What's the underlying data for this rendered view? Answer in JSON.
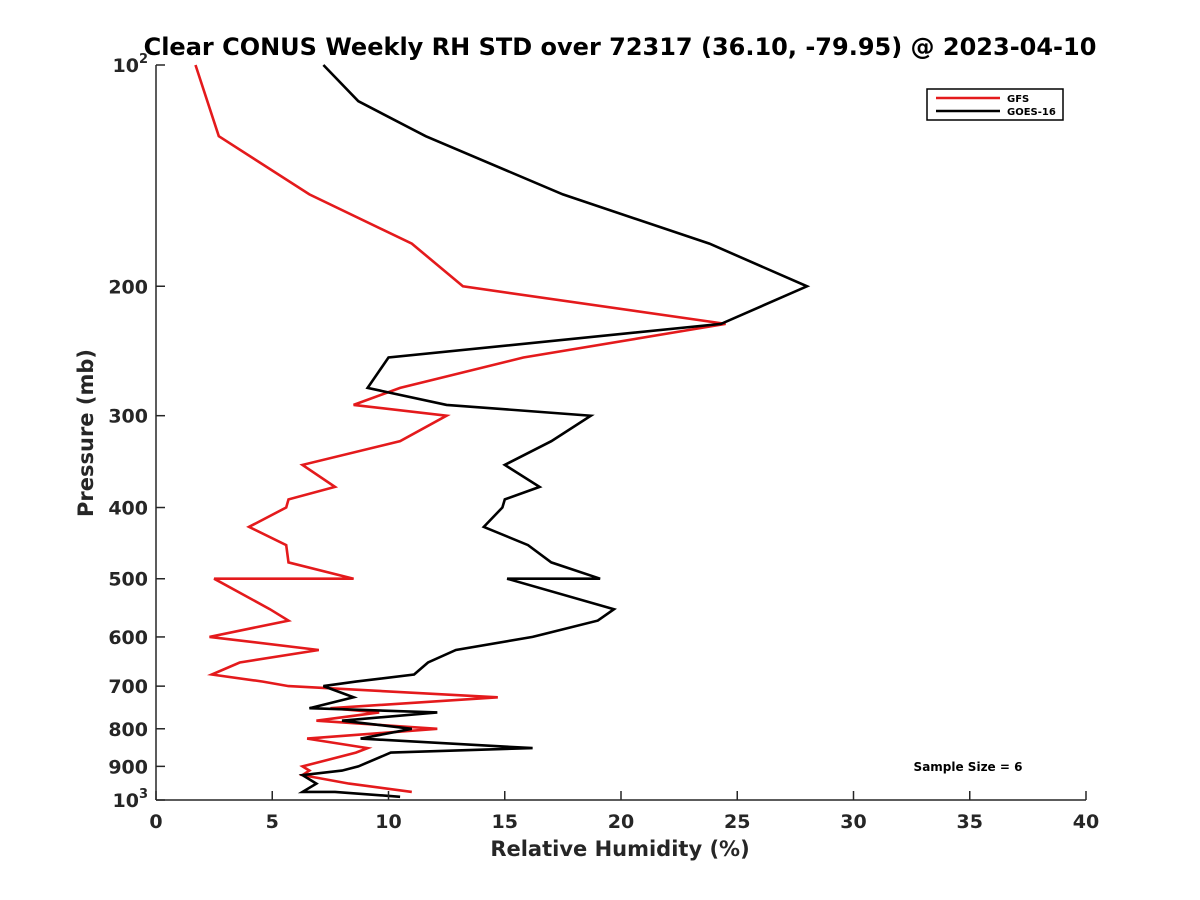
{
  "chart_data": {
    "type": "line",
    "title": "Clear CONUS Weekly RH STD over 72317 (36.10, -79.95) @ 2023-04-10",
    "xlabel": "Relative Humidity (%)",
    "ylabel": "Pressure (mb)",
    "xlim": [
      0,
      40
    ],
    "ylim": [
      100,
      1000
    ],
    "yscale": "log",
    "yreversed": true,
    "grid": false,
    "legend_position": "top-right",
    "x_ticks": [
      0,
      5,
      10,
      15,
      20,
      25,
      30,
      35,
      40
    ],
    "y_ticks": [
      {
        "value": 100,
        "base": "10",
        "exp": "2"
      },
      {
        "value": 200,
        "label": "200"
      },
      {
        "value": 300,
        "label": "300"
      },
      {
        "value": 400,
        "label": "400"
      },
      {
        "value": 500,
        "label": "500"
      },
      {
        "value": 600,
        "label": "600"
      },
      {
        "value": 700,
        "label": "700"
      },
      {
        "value": 800,
        "label": "800"
      },
      {
        "value": 900,
        "label": "900"
      },
      {
        "value": 1000,
        "base": "10",
        "exp": "3"
      }
    ],
    "annotation": "Sample Size = 6",
    "series": [
      {
        "name": "GFS",
        "color": "#e41a1c",
        "points": [
          [
            1.7,
            100
          ],
          [
            2.7,
            125
          ],
          [
            6.6,
            150
          ],
          [
            11.0,
            175
          ],
          [
            13.2,
            200
          ],
          [
            24.5,
            225
          ],
          [
            15.8,
            250
          ],
          [
            10.5,
            275
          ],
          [
            8.5,
            290
          ],
          [
            12.5,
            300
          ],
          [
            10.5,
            325
          ],
          [
            6.3,
            350
          ],
          [
            7.7,
            375
          ],
          [
            5.7,
            390
          ],
          [
            5.6,
            400
          ],
          [
            4.0,
            425
          ],
          [
            5.6,
            450
          ],
          [
            5.7,
            475
          ],
          [
            8.5,
            500
          ],
          [
            2.5,
            500
          ],
          [
            4.9,
            550
          ],
          [
            5.7,
            570
          ],
          [
            2.3,
            600
          ],
          [
            7.0,
            625
          ],
          [
            3.6,
            650
          ],
          [
            2.4,
            675
          ],
          [
            4.6,
            690
          ],
          [
            5.7,
            700
          ],
          [
            14.7,
            725
          ],
          [
            7.5,
            750
          ],
          [
            9.6,
            760
          ],
          [
            6.9,
            780
          ],
          [
            12.1,
            800
          ],
          [
            6.5,
            825
          ],
          [
            9.1,
            850
          ],
          [
            8.6,
            862
          ],
          [
            6.3,
            900
          ],
          [
            6.6,
            912
          ],
          [
            6.3,
            925
          ],
          [
            8.3,
            950
          ],
          [
            11.0,
            975
          ]
        ]
      },
      {
        "name": "GOES-16",
        "color": "#000000",
        "points": [
          [
            7.2,
            100
          ],
          [
            8.7,
            112
          ],
          [
            11.6,
            125
          ],
          [
            17.5,
            150
          ],
          [
            23.8,
            175
          ],
          [
            28.0,
            200
          ],
          [
            24.3,
            225
          ],
          [
            10.0,
            250
          ],
          [
            9.1,
            275
          ],
          [
            12.5,
            290
          ],
          [
            18.7,
            300
          ],
          [
            17.0,
            325
          ],
          [
            15.0,
            350
          ],
          [
            16.5,
            375
          ],
          [
            15.0,
            390
          ],
          [
            14.9,
            400
          ],
          [
            14.1,
            425
          ],
          [
            16.0,
            450
          ],
          [
            17.0,
            475
          ],
          [
            19.1,
            500
          ],
          [
            15.1,
            500
          ],
          [
            19.7,
            550
          ],
          [
            19.0,
            570
          ],
          [
            16.2,
            600
          ],
          [
            12.9,
            625
          ],
          [
            11.7,
            650
          ],
          [
            11.1,
            675
          ],
          [
            8.6,
            690
          ],
          [
            7.2,
            700
          ],
          [
            8.5,
            725
          ],
          [
            6.6,
            750
          ],
          [
            12.1,
            760
          ],
          [
            8.0,
            780
          ],
          [
            11.0,
            800
          ],
          [
            8.8,
            825
          ],
          [
            16.2,
            850
          ],
          [
            10.1,
            862
          ],
          [
            8.7,
            900
          ],
          [
            8.0,
            912
          ],
          [
            6.3,
            925
          ],
          [
            6.9,
            950
          ],
          [
            6.3,
            975
          ],
          [
            7.7,
            975
          ],
          [
            10.5,
            990
          ]
        ]
      }
    ]
  }
}
